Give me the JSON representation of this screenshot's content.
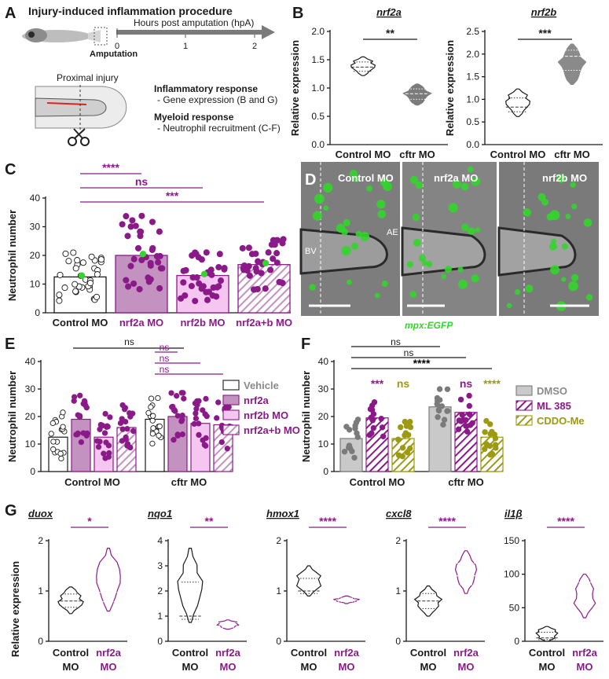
{
  "colors": {
    "purple": "#8b1a89",
    "mauve": "#c392c0",
    "pink": "#f5c6ef",
    "olive": "#9c9a12",
    "gray": "#c9c9c9",
    "dark": "#1a1a1a",
    "green": "#33d62b"
  },
  "panels": {
    "A": {
      "letter": "A",
      "title": "Injury-induced inflammation procedure",
      "axis_label": "Hours post amputation (hpA)",
      "ticks": [
        "0",
        "1",
        "2"
      ],
      "amputation": "Amputation",
      "proximal": "Proximal injury",
      "inflam_head": "Inflammatory response",
      "inflam_sub": "- Gene expression (B and G)",
      "myeloid_head": "Myeloid response",
      "myeloid_sub": "- Neutrophil recruitment (C-F)"
    },
    "B": {
      "letter": "B"
    },
    "C": {
      "letter": "C"
    },
    "D": {
      "letter": "D",
      "labels": [
        "Control MO",
        "nrf2a MO",
        "nrf2b MO"
      ],
      "ae": "AE",
      "bv": "BV",
      "caption": "mpx:EGFP"
    },
    "E": {
      "letter": "E"
    },
    "F": {
      "letter": "F"
    },
    "G": {
      "letter": "G",
      "ylabel": "Relative expression"
    }
  },
  "chart_data": [
    {
      "id": "B1",
      "type": "violin",
      "title": "nrf2a",
      "ylabel": "Relative expression",
      "ylim": [
        0,
        2.0
      ],
      "yticks": [
        "0.0",
        "0.5",
        "1.0",
        "1.5",
        "2.0"
      ],
      "categories": [
        "Control MO",
        "cftr MO"
      ],
      "median": [
        1.37,
        0.9
      ],
      "range": [
        [
          1.22,
          1.55
        ],
        [
          0.7,
          1.07
        ]
      ],
      "significance": "**"
    },
    {
      "id": "B2",
      "type": "violin",
      "title": "nrf2b",
      "ylabel": "Relative expression",
      "ylim": [
        0,
        2.5
      ],
      "yticks": [
        "0.0",
        "0.5",
        "1.0",
        "1.5",
        "2.0",
        "2.5"
      ],
      "categories": [
        "Control MO",
        "cftr MO"
      ],
      "median": [
        0.83,
        1.95
      ],
      "range": [
        [
          0.62,
          1.23
        ],
        [
          1.33,
          2.22
        ]
      ],
      "significance": "***"
    },
    {
      "id": "C",
      "type": "bar",
      "ylabel": "Neutrophil number",
      "ylim": [
        0,
        40
      ],
      "yticks": [
        "0",
        "10",
        "20",
        "30",
        "40"
      ],
      "categories": [
        "Control MO",
        "nrf2a MO",
        "nrf2b MO",
        "nrf2a+b MO"
      ],
      "values": [
        12.5,
        20,
        13,
        16.8
      ],
      "comparisons": [
        [
          "****",
          1
        ],
        [
          "ns",
          2
        ],
        [
          "***",
          3
        ]
      ]
    },
    {
      "id": "E",
      "type": "bar",
      "ylabel": "Neutrophil number",
      "ylim": [
        0,
        40
      ],
      "yticks": [
        "0",
        "10",
        "20",
        "30",
        "40"
      ],
      "groups": [
        "Control MO",
        "cftr MO"
      ],
      "legend": [
        "Vehicle",
        "nrf2a",
        "nrf2b MO",
        "nrf2a+b MO"
      ],
      "series": [
        {
          "name": "Vehicle",
          "values": [
            12.5,
            19
          ]
        },
        {
          "name": "nrf2a",
          "values": [
            19,
            20
          ]
        },
        {
          "name": "nrf2b MO",
          "values": [
            12.5,
            17.5
          ]
        },
        {
          "name": "nrf2a+b MO",
          "values": [
            16,
            17
          ]
        }
      ],
      "annotations": [
        "ns",
        "ns",
        "ns",
        "ns"
      ]
    },
    {
      "id": "F",
      "type": "bar",
      "ylabel": "Neutrophil number",
      "ylim": [
        0,
        40
      ],
      "yticks": [
        "0",
        "10",
        "20",
        "30",
        "40"
      ],
      "groups": [
        "Control MO",
        "cftr MO"
      ],
      "legend": [
        "DMSO",
        "ML 385",
        "CDDO-Me"
      ],
      "series": [
        {
          "name": "DMSO",
          "values": [
            12,
            23.5
          ]
        },
        {
          "name": "ML 385",
          "values": [
            19.5,
            21.5
          ]
        },
        {
          "name": "CDDO-Me",
          "values": [
            12,
            12.5
          ]
        }
      ],
      "stars": [
        "***",
        "ns",
        "ns",
        "****"
      ],
      "brackets": [
        "ns",
        "ns",
        "****"
      ]
    },
    {
      "id": "G1",
      "type": "violin",
      "title": "duox",
      "ylim": [
        0,
        2
      ],
      "yticks": [
        "0",
        "1",
        "2"
      ],
      "categories": [
        "Control MO",
        "nrf2a MO"
      ],
      "median": [
        0.8,
        0.97
      ],
      "range": [
        [
          0.55,
          1.08
        ],
        [
          0.6,
          1.85
        ]
      ],
      "significance": "*"
    },
    {
      "id": "G2",
      "type": "violin",
      "title": "nqo1",
      "ylim": [
        0,
        4
      ],
      "yticks": [
        "0",
        "1",
        "2",
        "3",
        "4"
      ],
      "categories": [
        "Control MO",
        "nrf2a MO"
      ],
      "median": [
        1.0,
        0.6
      ],
      "range": [
        [
          0.75,
          3.7
        ],
        [
          0.48,
          0.85
        ]
      ],
      "significance": "**"
    },
    {
      "id": "G3",
      "type": "violin",
      "title": "hmox1",
      "ylim": [
        0,
        2
      ],
      "yticks": [
        "0",
        "1",
        "2"
      ],
      "categories": [
        "Control MO",
        "nrf2a MO"
      ],
      "median": [
        1.0,
        0.82
      ],
      "range": [
        [
          0.9,
          1.5
        ],
        [
          0.75,
          0.9
        ]
      ],
      "significance": "****"
    },
    {
      "id": "G4",
      "type": "violin",
      "title": "cxcl8",
      "ylim": [
        0,
        2
      ],
      "yticks": [
        "0",
        "1",
        "2"
      ],
      "categories": [
        "Control MO",
        "nrf2a MO"
      ],
      "median": [
        0.8,
        1.3
      ],
      "range": [
        [
          0.5,
          1.1
        ],
        [
          0.95,
          1.8
        ]
      ],
      "significance": "****"
    },
    {
      "id": "G5",
      "type": "violin",
      "title": "il1β",
      "ylim": [
        0,
        150
      ],
      "yticks": [
        "0",
        "50",
        "100",
        "150"
      ],
      "categories": [
        "Control MO",
        "nrf2a MO"
      ],
      "median": [
        5,
        88
      ],
      "range": [
        [
          0,
          22
        ],
        [
          35,
          100
        ]
      ],
      "significance": "****"
    }
  ]
}
